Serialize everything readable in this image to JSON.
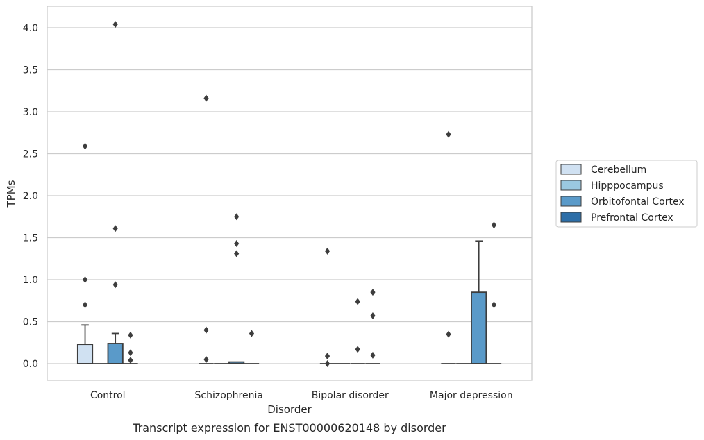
{
  "chart_data": {
    "type": "box",
    "caption": "Transcript expression for ENST00000620148 by disorder",
    "xlabel": "Disorder",
    "ylabel": "TPMs",
    "ylim": [
      -0.2,
      4.25
    ],
    "yticks": [
      "0.0",
      "0.5",
      "1.0",
      "1.5",
      "2.0",
      "2.5",
      "3.0",
      "3.5",
      "4.0"
    ],
    "grid": true,
    "legend_position": "right",
    "categories": [
      "Control",
      "Schizophrenia",
      "Bipolar disorder",
      "Major depression"
    ],
    "series": [
      {
        "name": "Cerebellum",
        "color": "#d0e1f2",
        "boxes": [
          {
            "q1": 0.0,
            "median": 0.0,
            "q3": 0.23,
            "whisker_low": 0.0,
            "whisker_high": 0.46,
            "outliers": [
              0.7,
              1.0,
              2.59
            ]
          },
          {
            "q1": 0.0,
            "median": 0.0,
            "q3": 0.0,
            "whisker_low": 0.0,
            "whisker_high": 0.0,
            "outliers": [
              0.05,
              0.4,
              3.16
            ]
          },
          {
            "q1": 0.0,
            "median": 0.0,
            "q3": 0.0,
            "whisker_low": 0.0,
            "whisker_high": 0.0,
            "outliers": [
              0.0,
              0.09,
              1.34
            ]
          },
          {
            "q1": 0.0,
            "median": 0.0,
            "q3": 0.0,
            "whisker_low": 0.0,
            "whisker_high": 0.0,
            "outliers": [
              0.35,
              2.73
            ]
          }
        ]
      },
      {
        "name": "Hipppocampus",
        "color": "#9ac8e0",
        "boxes": [
          {
            "q1": 0.0,
            "median": 0.0,
            "q3": 0.0,
            "whisker_low": 0.0,
            "whisker_high": 0.0,
            "outliers": []
          },
          {
            "q1": 0.0,
            "median": 0.0,
            "q3": 0.0,
            "whisker_low": 0.0,
            "whisker_high": 0.0,
            "outliers": []
          },
          {
            "q1": 0.0,
            "median": 0.0,
            "q3": 0.0,
            "whisker_low": 0.0,
            "whisker_high": 0.0,
            "outliers": []
          },
          {
            "q1": 0.0,
            "median": 0.0,
            "q3": 0.0,
            "whisker_low": 0.0,
            "whisker_high": 0.0,
            "outliers": []
          }
        ]
      },
      {
        "name": "Orbitofontal Cortex",
        "color": "#5a9ac9",
        "boxes": [
          {
            "q1": 0.0,
            "median": 0.0,
            "q3": 0.24,
            "whisker_low": 0.0,
            "whisker_high": 0.36,
            "outliers": [
              0.94,
              1.61,
              4.04
            ]
          },
          {
            "q1": 0.0,
            "median": 0.0,
            "q3": 0.02,
            "whisker_low": 0.0,
            "whisker_high": 0.02,
            "outliers": [
              1.31,
              1.43,
              1.75
            ]
          },
          {
            "q1": 0.0,
            "median": 0.0,
            "q3": 0.0,
            "whisker_low": 0.0,
            "whisker_high": 0.0,
            "outliers": [
              0.17,
              0.74
            ]
          },
          {
            "q1": 0.0,
            "median": 0.0,
            "q3": 0.85,
            "whisker_low": 0.0,
            "whisker_high": 1.46,
            "outliers": []
          }
        ]
      },
      {
        "name": "Prefrontal Cortex",
        "color": "#2c6ea8",
        "boxes": [
          {
            "q1": 0.0,
            "median": 0.0,
            "q3": 0.0,
            "whisker_low": 0.0,
            "whisker_high": 0.0,
            "outliers": [
              0.04,
              0.13,
              0.34
            ]
          },
          {
            "q1": 0.0,
            "median": 0.0,
            "q3": 0.0,
            "whisker_low": 0.0,
            "whisker_high": 0.0,
            "outliers": [
              0.36
            ]
          },
          {
            "q1": 0.0,
            "median": 0.0,
            "q3": 0.0,
            "whisker_low": 0.0,
            "whisker_high": 0.0,
            "outliers": [
              0.1,
              0.57,
              0.85
            ]
          },
          {
            "q1": 0.0,
            "median": 0.0,
            "q3": 0.0,
            "whisker_low": 0.0,
            "whisker_high": 0.0,
            "outliers": [
              0.7,
              1.65
            ]
          }
        ]
      }
    ]
  }
}
